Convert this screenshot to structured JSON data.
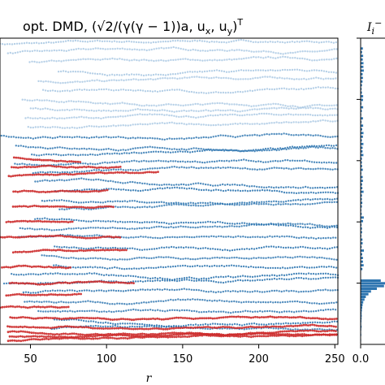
{
  "chart_data": [
    {
      "type": "scatter",
      "title": "opt.  DMD, (√2/(γ(γ − 1))a, u",
      "title_sub_x": "x",
      "title_sep": ", u",
      "title_sub_y": "y",
      "title_close": ")",
      "title_sup": "T",
      "xlabel": "r",
      "xlim": [
        30,
        252
      ],
      "xticks": [
        50,
        100,
        150,
        200,
        250
      ],
      "xtick_labels": [
        "50",
        "100",
        "150",
        "200",
        "250"
      ],
      "ylabel": "",
      "grid": false,
      "colors": {
        "blue": "#2e75b0",
        "light_blue": "#a9c8e3",
        "red": "#cc2a2a"
      },
      "series": [
        {
          "values": [
            0.98,
            0.95,
            0.92,
            0.89,
            0.86,
            0.83,
            0.8,
            0.77,
            0.74,
            0.71,
            0.68,
            0.65,
            0.62,
            0.59,
            0.56,
            0.53,
            0.5,
            0.47,
            0.44,
            0.41,
            0.38,
            0.35,
            0.32,
            0.29,
            0.26,
            0.23,
            0.2,
            0.17,
            0.14,
            0.11,
            0.08,
            0.05
          ]
        },
        {
          "values": [
            0.61,
            0.58,
            0.55,
            0.5,
            0.45,
            0.4,
            0.35,
            0.3,
            0.25,
            0.2,
            0.16,
            0.12,
            0.09,
            0.06,
            0.04,
            0.025,
            0.012
          ]
        }
      ]
    },
    {
      "type": "bar",
      "title": "I",
      "title_sub": "i",
      "title_sup": "−",
      "xticks": [
        0.0
      ],
      "xtick_labels": [
        "0.0"
      ],
      "values": [
        0.01,
        0.015,
        0.01,
        0.02,
        0.015,
        0.02,
        0.03,
        0.02,
        0.025,
        0.03,
        0.035,
        0.03,
        0.04,
        0.05,
        0.06,
        0.08,
        0.12,
        0.16,
        0.24,
        0.32,
        0.5,
        0.72,
        0.9,
        0.62
      ]
    }
  ]
}
